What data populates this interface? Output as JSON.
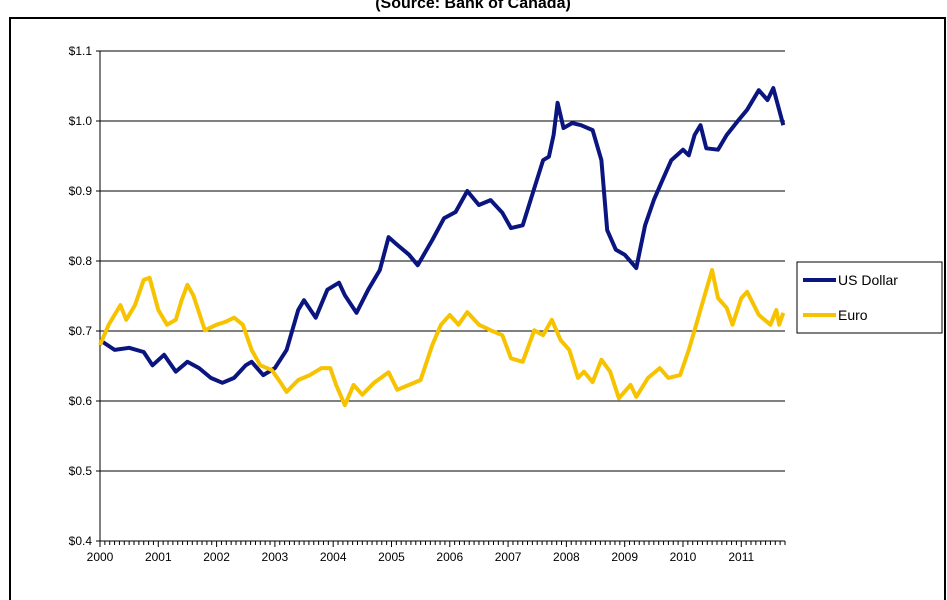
{
  "chart_data": {
    "type": "line",
    "title": "(Source: Bank of Canada)",
    "xlim": [
      2000,
      2011.75
    ],
    "xticks": [
      2000,
      2001,
      2002,
      2003,
      2004,
      2005,
      2006,
      2007,
      2008,
      2009,
      2010,
      2011
    ],
    "ylim": [
      0.4,
      1.1
    ],
    "yticks": [
      {
        "value": 0.4,
        "label": "$0.4"
      },
      {
        "value": 0.5,
        "label": "$0.5"
      },
      {
        "value": 0.6,
        "label": "$0.6"
      },
      {
        "value": 0.7,
        "label": "$0.7"
      },
      {
        "value": 0.8,
        "label": "$0.8"
      },
      {
        "value": 0.9,
        "label": "$0.9"
      },
      {
        "value": 1.0,
        "label": "$1.0"
      },
      {
        "value": 1.1,
        "label": "$1.1"
      }
    ],
    "grid": true,
    "legend": "right",
    "series": [
      {
        "name": "US Dollar",
        "color": "#0b1580",
        "x": [
          2000.0,
          2000.25,
          2000.5,
          2000.75,
          2000.9,
          2001.1,
          2001.3,
          2001.5,
          2001.7,
          2001.9,
          2002.1,
          2002.3,
          2002.5,
          2002.6,
          2002.8,
          2003.0,
          2003.2,
          2003.4,
          2003.5,
          2003.7,
          2003.9,
          2004.1,
          2004.2,
          2004.4,
          2004.6,
          2004.8,
          2004.95,
          2005.1,
          2005.3,
          2005.45,
          2005.7,
          2005.9,
          2006.1,
          2006.3,
          2006.5,
          2006.7,
          2006.9,
          2007.05,
          2007.25,
          2007.45,
          2007.6,
          2007.7,
          2007.78,
          2007.85,
          2007.95,
          2008.1,
          2008.25,
          2008.45,
          2008.6,
          2008.7,
          2008.85,
          2009.0,
          2009.2,
          2009.35,
          2009.5,
          2009.65,
          2009.8,
          2010.0,
          2010.1,
          2010.2,
          2010.3,
          2010.4,
          2010.6,
          2010.75,
          2010.95,
          2011.1,
          2011.3,
          2011.45,
          2011.55,
          2011.72
        ],
        "values": [
          0.687,
          0.673,
          0.676,
          0.67,
          0.651,
          0.666,
          0.642,
          0.656,
          0.647,
          0.633,
          0.626,
          0.633,
          0.651,
          0.656,
          0.637,
          0.647,
          0.673,
          0.73,
          0.744,
          0.719,
          0.759,
          0.769,
          0.751,
          0.726,
          0.759,
          0.787,
          0.834,
          0.823,
          0.809,
          0.794,
          0.83,
          0.861,
          0.87,
          0.9,
          0.88,
          0.887,
          0.869,
          0.847,
          0.851,
          0.904,
          0.944,
          0.949,
          0.98,
          1.026,
          0.99,
          0.997,
          0.994,
          0.987,
          0.944,
          0.844,
          0.816,
          0.809,
          0.79,
          0.851,
          0.887,
          0.916,
          0.944,
          0.959,
          0.951,
          0.98,
          0.994,
          0.961,
          0.959,
          0.98,
          1.001,
          1.016,
          1.044,
          1.03,
          1.047,
          0.994
        ]
      },
      {
        "name": "Euro",
        "color": "#f7c300",
        "x": [
          2000.0,
          2000.15,
          2000.35,
          2000.45,
          2000.6,
          2000.75,
          2000.85,
          2001.0,
          2001.15,
          2001.3,
          2001.4,
          2001.5,
          2001.6,
          2001.8,
          2002.0,
          2002.15,
          2002.3,
          2002.45,
          2002.6,
          2002.75,
          2002.95,
          2003.1,
          2003.2,
          2003.4,
          2003.6,
          2003.8,
          2003.95,
          2004.05,
          2004.2,
          2004.35,
          2004.5,
          2004.7,
          2004.95,
          2005.1,
          2005.3,
          2005.5,
          2005.7,
          2005.85,
          2006.0,
          2006.15,
          2006.3,
          2006.5,
          2006.7,
          2006.9,
          2007.05,
          2007.25,
          2007.45,
          2007.6,
          2007.75,
          2007.9,
          2008.05,
          2008.2,
          2008.3,
          2008.45,
          2008.6,
          2008.75,
          2008.9,
          2009.1,
          2009.2,
          2009.4,
          2009.6,
          2009.75,
          2009.95,
          2010.1,
          2010.25,
          2010.4,
          2010.5,
          2010.6,
          2010.75,
          2010.85,
          2011.0,
          2011.1,
          2011.3,
          2011.5,
          2011.6,
          2011.65,
          2011.72
        ],
        "values": [
          0.68,
          0.709,
          0.737,
          0.716,
          0.737,
          0.773,
          0.776,
          0.73,
          0.709,
          0.716,
          0.744,
          0.766,
          0.751,
          0.701,
          0.709,
          0.713,
          0.719,
          0.709,
          0.673,
          0.651,
          0.644,
          0.626,
          0.613,
          0.63,
          0.637,
          0.647,
          0.647,
          0.623,
          0.594,
          0.623,
          0.609,
          0.626,
          0.641,
          0.616,
          0.623,
          0.63,
          0.68,
          0.709,
          0.723,
          0.709,
          0.727,
          0.709,
          0.701,
          0.694,
          0.661,
          0.656,
          0.701,
          0.694,
          0.716,
          0.687,
          0.673,
          0.633,
          0.642,
          0.627,
          0.659,
          0.642,
          0.604,
          0.623,
          0.606,
          0.633,
          0.647,
          0.633,
          0.637,
          0.673,
          0.716,
          0.759,
          0.787,
          0.747,
          0.733,
          0.709,
          0.747,
          0.756,
          0.723,
          0.709,
          0.73,
          0.709,
          0.726
        ]
      }
    ]
  }
}
